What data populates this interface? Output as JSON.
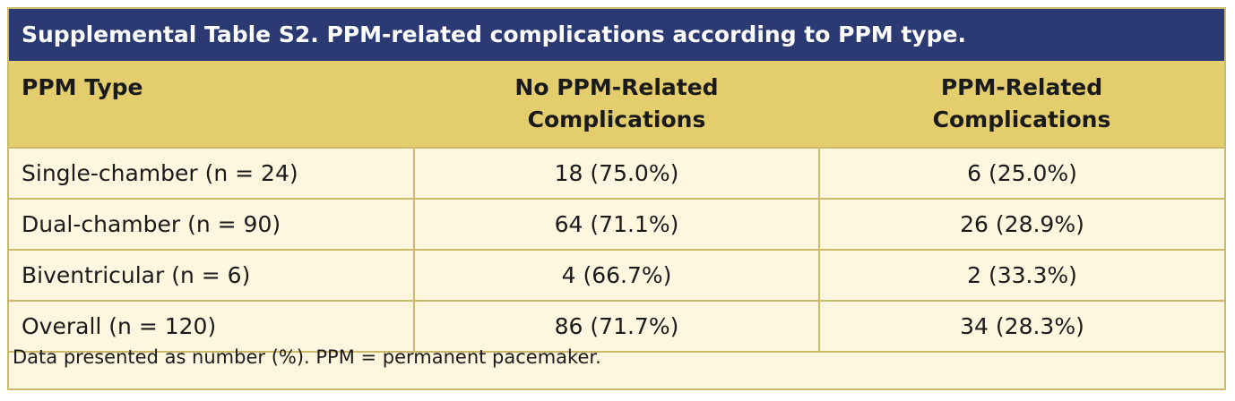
{
  "title": "Supplemental Table S2. PPM-related complications according to PPM type.",
  "columns": [
    "PPM Type",
    "No PPM-Related\nComplications",
    "PPM-Related\nComplications"
  ],
  "column_lines": [
    [
      "PPM Type"
    ],
    [
      "No PPM-Related",
      "Complications"
    ],
    [
      "PPM-Related",
      "Complications"
    ]
  ],
  "rows": [
    {
      "type": "Single-chamber (n = 24)",
      "no_comp": "18 (75.0%)",
      "comp": "6 (25.0%)"
    },
    {
      "type": "Dual-chamber (n = 90)",
      "no_comp": "64 (71.1%)",
      "comp": "26 (28.9%)"
    },
    {
      "type": "Biventricular (n = 6)",
      "no_comp": "4 (66.7%)",
      "comp": "2 (33.3%)"
    },
    {
      "type": "Overall (n = 120)",
      "no_comp": "86 (71.7%)",
      "comp": "34 (28.3%)"
    }
  ],
  "footnote": "Data presented as number (%). PPM = permanent pacemaker.",
  "colors": {
    "title_bg": "#2b3a73",
    "header_bg": "#e3cd6d",
    "body_bg": "#fef6df",
    "border": "#cdb96a"
  }
}
